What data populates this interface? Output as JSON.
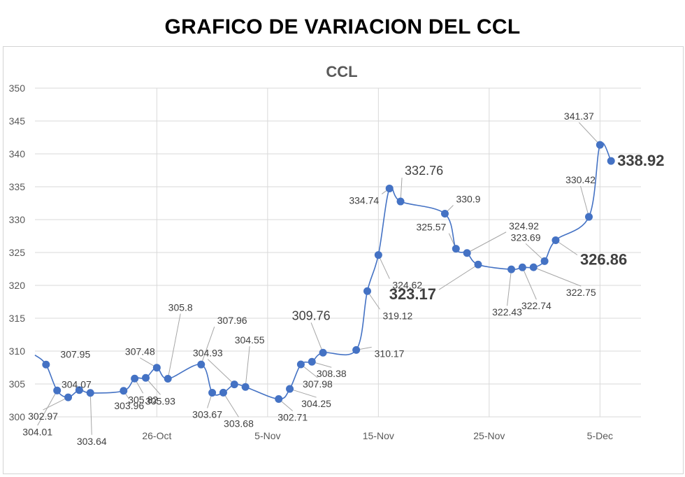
{
  "page_title": "GRAFICO DE VARIACION DEL CCL",
  "colors": {
    "series": "#4472C4",
    "grid": "#d9d9d9",
    "label": "#404040",
    "leader": "#a6a6a6"
  },
  "chart_data": {
    "type": "line",
    "title": "CCL",
    "xlabel": "",
    "ylabel": "",
    "ylim": [
      300,
      350
    ],
    "yticks": [
      300,
      305,
      310,
      315,
      320,
      325,
      330,
      335,
      340,
      345,
      350
    ],
    "xlim": [
      "2020-10-15",
      "2020-12-09"
    ],
    "xticks": [
      {
        "date": "2020-10-26",
        "label": "26-Oct"
      },
      {
        "date": "2020-11-05",
        "label": "5-Nov"
      },
      {
        "date": "2020-11-15",
        "label": "15-Nov"
      },
      {
        "date": "2020-11-25",
        "label": "25-Nov"
      },
      {
        "date": "2020-12-05",
        "label": "5-Dec"
      }
    ],
    "grid": true,
    "series": [
      {
        "points": [
          {
            "date": "2020-10-15",
            "value": 309.4
          },
          {
            "date": "2020-10-16",
            "value": 307.95,
            "label": "307.95"
          },
          {
            "date": "2020-10-17",
            "value": 304.01,
            "label": "304.01"
          },
          {
            "date": "2020-10-18",
            "value": 302.97,
            "label": "302.97"
          },
          {
            "date": "2020-10-19",
            "value": 304.07,
            "label": "304.07"
          },
          {
            "date": "2020-10-20",
            "value": 303.64,
            "label": "303.64"
          },
          {
            "date": "2020-10-23",
            "value": 303.96,
            "label": "303.96"
          },
          {
            "date": "2020-10-24",
            "value": 305.82,
            "label": "305.82"
          },
          {
            "date": "2020-10-25",
            "value": 305.93,
            "label": "305.93"
          },
          {
            "date": "2020-10-26",
            "value": 307.48,
            "label": "307.48"
          },
          {
            "date": "2020-10-27",
            "value": 305.8,
            "label": "305.8"
          },
          {
            "date": "2020-10-30",
            "value": 307.96,
            "label": "307.96"
          },
          {
            "date": "2020-10-31",
            "value": 303.67,
            "label": "303.67"
          },
          {
            "date": "2020-11-01",
            "value": 303.68,
            "label": "303.68"
          },
          {
            "date": "2020-11-02",
            "value": 304.93,
            "label": "304.93"
          },
          {
            "date": "2020-11-03",
            "value": 304.55,
            "label": "304.55"
          },
          {
            "date": "2020-11-06",
            "value": 302.71,
            "label": "302.71"
          },
          {
            "date": "2020-11-07",
            "value": 304.25,
            "label": "304.25"
          },
          {
            "date": "2020-11-08",
            "value": 307.98,
            "label": "307.98"
          },
          {
            "date": "2020-11-09",
            "value": 308.38,
            "label": "308.38"
          },
          {
            "date": "2020-11-10",
            "value": 309.76,
            "label": "309.76"
          },
          {
            "date": "2020-11-13",
            "value": 310.17,
            "label": "310.17"
          },
          {
            "date": "2020-11-14",
            "value": 319.12,
            "label": "319.12"
          },
          {
            "date": "2020-11-15",
            "value": 324.62,
            "label": "324.62"
          },
          {
            "date": "2020-11-16",
            "value": 334.74,
            "label": "334.74"
          },
          {
            "date": "2020-11-17",
            "value": 332.76,
            "label": "332.76"
          },
          {
            "date": "2020-11-21",
            "value": 330.9,
            "label": "330.9"
          },
          {
            "date": "2020-11-22",
            "value": 325.57,
            "label": "325.57"
          },
          {
            "date": "2020-11-23",
            "value": 324.92,
            "label": "324.92"
          },
          {
            "date": "2020-11-24",
            "value": 323.17,
            "label": "323.17"
          },
          {
            "date": "2020-11-27",
            "value": 322.43,
            "label": "322.43"
          },
          {
            "date": "2020-11-28",
            "value": 322.74,
            "label": "322.74"
          },
          {
            "date": "2020-11-29",
            "value": 322.75,
            "label": "322.75"
          },
          {
            "date": "2020-11-30",
            "value": 323.69,
            "label": "323.69"
          },
          {
            "date": "2020-12-01",
            "value": 326.86,
            "label": "326.86"
          },
          {
            "date": "2020-12-04",
            "value": 330.42,
            "label": "330.42"
          },
          {
            "date": "2020-12-05",
            "value": 341.37,
            "label": "341.37"
          },
          {
            "date": "2020-12-06",
            "value": 338.92,
            "label": "338.92"
          }
        ]
      }
    ]
  }
}
